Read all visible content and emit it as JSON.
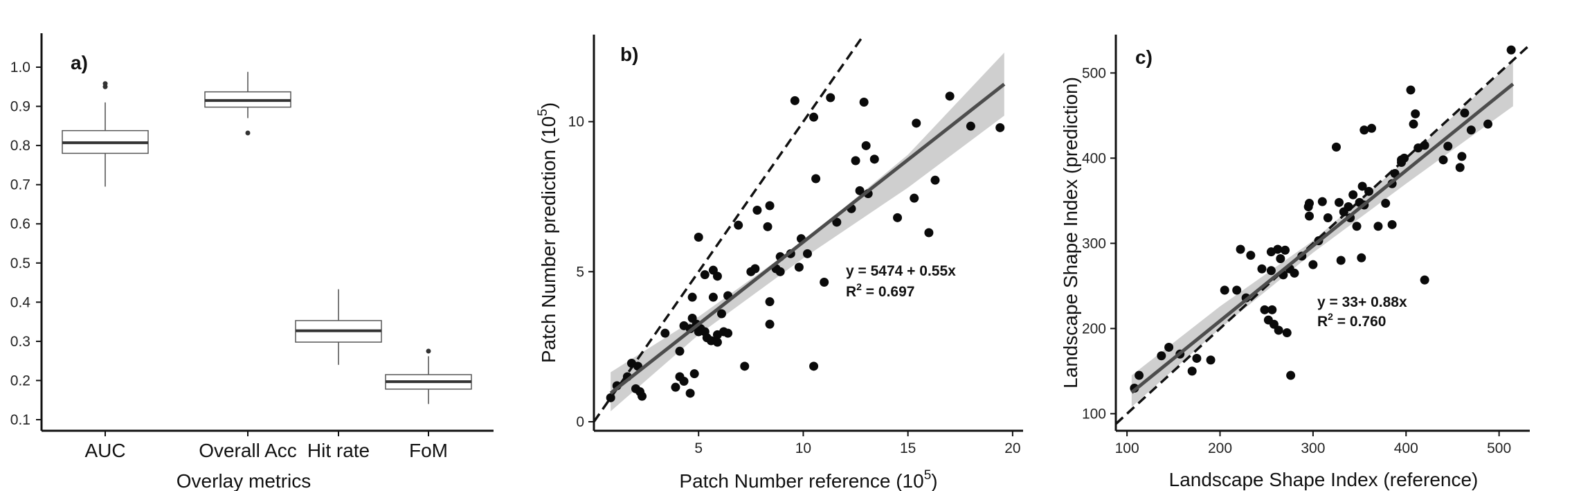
{
  "chart_data": [
    {
      "id": "a",
      "type": "box",
      "panel_label": "a)",
      "xlabel": "Overlay metrics",
      "ylabel": "",
      "ylim": [
        0.1,
        1.05
      ],
      "yticks": [
        "0.1",
        "0.2",
        "0.3",
        "0.4",
        "0.5",
        "0.6",
        "0.7",
        "0.8",
        "0.9",
        "1.0"
      ],
      "categories": [
        "AUC",
        "Overall Acc",
        "Hit rate",
        "FoM"
      ],
      "boxes": [
        {
          "min": 0.695,
          "q1": 0.78,
          "median": 0.807,
          "q3": 0.838,
          "max": 0.91,
          "outliers": [
            0.95,
            0.958
          ]
        },
        {
          "min": 0.87,
          "q1": 0.898,
          "median": 0.915,
          "q3": 0.937,
          "max": 0.988,
          "outliers": [
            0.832
          ]
        },
        {
          "min": 0.24,
          "q1": 0.298,
          "median": 0.327,
          "q3": 0.353,
          "max": 0.433,
          "outliers": []
        },
        {
          "min": 0.14,
          "q1": 0.178,
          "median": 0.197,
          "q3": 0.215,
          "max": 0.262,
          "outliers": [
            0.275
          ]
        }
      ],
      "colors": {
        "box_fill": "#ffffff",
        "box_line": "#555555",
        "median": "#333333"
      }
    },
    {
      "id": "b",
      "type": "scatter",
      "panel_label": "b)",
      "xlabel_prefix": "Patch Number reference (10",
      "xlabel_sup": "5",
      "xlabel_suffix": ")",
      "ylabel_prefix": "Patch Number prediction (10",
      "ylabel_sup": "5",
      "ylabel_suffix": ")",
      "xlim": [
        0,
        20.5
      ],
      "ylim": [
        -0.3,
        12.9
      ],
      "xticks": [
        5,
        10,
        15,
        20
      ],
      "yticks": [
        0,
        5,
        10
      ],
      "equation_line1": "y = 5474 + 0.55x",
      "equation_line2_prefix": "R",
      "equation_line2_sup": "2",
      "equation_line2_suffix": " = 0.697",
      "fit": {
        "x0": 0.8,
        "x1": 19.6,
        "y0": 0.95,
        "y1": 11.25
      },
      "ci_band": {
        "x": [
          0.8,
          5,
          10,
          15,
          19.6
        ],
        "lower": [
          0.35,
          2.9,
          5.45,
          7.8,
          10.2
        ],
        "upper": [
          1.65,
          3.5,
          6.0,
          8.9,
          12.3
        ]
      },
      "identity_line": {
        "x0": 0,
        "x1": 12.9
      },
      "points": [
        [
          0.8,
          0.8
        ],
        [
          1.1,
          1.2
        ],
        [
          1.6,
          1.5
        ],
        [
          1.8,
          1.95
        ],
        [
          2.1,
          1.85
        ],
        [
          2.0,
          1.1
        ],
        [
          2.2,
          1.0
        ],
        [
          2.3,
          0.85
        ],
        [
          3.4,
          2.95
        ],
        [
          3.9,
          1.15
        ],
        [
          4.1,
          1.5
        ],
        [
          4.3,
          1.35
        ],
        [
          4.1,
          2.35
        ],
        [
          4.3,
          3.2
        ],
        [
          4.6,
          3.1
        ],
        [
          4.6,
          0.95
        ],
        [
          4.8,
          1.6
        ],
        [
          4.7,
          3.45
        ],
        [
          4.9,
          3.25
        ],
        [
          5.0,
          3.0
        ],
        [
          5.1,
          3.1
        ],
        [
          5.3,
          3.0
        ],
        [
          5.4,
          2.8
        ],
        [
          5.6,
          2.7
        ],
        [
          5.9,
          2.9
        ],
        [
          5.9,
          2.65
        ],
        [
          6.2,
          3.0
        ],
        [
          6.4,
          2.95
        ],
        [
          4.7,
          4.15
        ],
        [
          5.7,
          4.15
        ],
        [
          5.7,
          5.05
        ],
        [
          5.3,
          4.9
        ],
        [
          5.9,
          4.85
        ],
        [
          6.4,
          4.2
        ],
        [
          6.1,
          3.6
        ],
        [
          5.0,
          6.15
        ],
        [
          7.2,
          1.85
        ],
        [
          6.9,
          6.55
        ],
        [
          7.5,
          5.0
        ],
        [
          7.7,
          5.1
        ],
        [
          7.8,
          7.05
        ],
        [
          8.3,
          6.5
        ],
        [
          8.4,
          7.2
        ],
        [
          8.4,
          4.0
        ],
        [
          8.4,
          3.25
        ],
        [
          8.7,
          5.1
        ],
        [
          8.9,
          5.0
        ],
        [
          8.9,
          5.5
        ],
        [
          9.4,
          5.6
        ],
        [
          9.8,
          5.15
        ],
        [
          9.9,
          6.1
        ],
        [
          10.2,
          5.6
        ],
        [
          9.6,
          10.7
        ],
        [
          10.5,
          10.15
        ],
        [
          10.6,
          8.1
        ],
        [
          11.0,
          4.65
        ],
        [
          11.3,
          10.8
        ],
        [
          11.6,
          6.65
        ],
        [
          12.3,
          7.1
        ],
        [
          12.5,
          8.7
        ],
        [
          12.7,
          7.7
        ],
        [
          12.9,
          10.65
        ],
        [
          13.0,
          9.2
        ],
        [
          13.1,
          7.6
        ],
        [
          13.4,
          8.75
        ],
        [
          14.5,
          6.8
        ],
        [
          15.3,
          7.45
        ],
        [
          15.4,
          9.95
        ],
        [
          16.0,
          6.3
        ],
        [
          16.3,
          8.05
        ],
        [
          17.0,
          10.85
        ],
        [
          18.0,
          9.85
        ],
        [
          19.4,
          9.8
        ],
        [
          10.5,
          1.85
        ]
      ]
    },
    {
      "id": "c",
      "type": "scatter",
      "panel_label": "c)",
      "xlabel": "Landscape Shape Index (reference)",
      "ylabel": "Landscape Shape Index (prediction)",
      "xlim": [
        88,
        533
      ],
      "ylim": [
        80,
        545
      ],
      "xticks": [
        100,
        200,
        300,
        400,
        500
      ],
      "yticks": [
        100,
        200,
        300,
        400,
        500
      ],
      "equation_line1": "y = 33+ 0.88x",
      "equation_line2_prefix": "R",
      "equation_line2_sup": "2",
      "equation_line2_suffix": " = 0.760",
      "fit": {
        "x0": 105,
        "x1": 515,
        "y0": 125,
        "y1": 487
      },
      "ci_band": {
        "x": [
          105,
          200,
          300,
          400,
          515
        ],
        "lower": [
          108,
          200,
          289,
          370,
          461
        ],
        "upper": [
          145,
          226,
          303,
          398,
          514
        ]
      },
      "identity_line": {
        "x0": 88,
        "x1": 533
      },
      "points": [
        [
          108,
          130
        ],
        [
          113,
          145
        ],
        [
          137,
          168
        ],
        [
          145,
          178
        ],
        [
          157,
          170
        ],
        [
          170,
          150
        ],
        [
          175,
          165
        ],
        [
          190,
          163
        ],
        [
          205,
          245
        ],
        [
          218,
          245
        ],
        [
          222,
          293
        ],
        [
          228,
          236
        ],
        [
          233,
          286
        ],
        [
          245,
          270
        ],
        [
          248,
          222
        ],
        [
          252,
          210
        ],
        [
          255,
          268
        ],
        [
          256,
          222
        ],
        [
          258,
          205
        ],
        [
          255,
          290
        ],
        [
          262,
          293
        ],
        [
          263,
          198
        ],
        [
          265,
          282
        ],
        [
          268,
          263
        ],
        [
          270,
          292
        ],
        [
          272,
          195
        ],
        [
          275,
          270
        ],
        [
          276,
          145
        ],
        [
          280,
          265
        ],
        [
          288,
          285
        ],
        [
          295,
          343
        ],
        [
          296,
          332
        ],
        [
          296,
          347
        ],
        [
          300,
          275
        ],
        [
          306,
          303
        ],
        [
          310,
          349
        ],
        [
          316,
          330
        ],
        [
          325,
          413
        ],
        [
          328,
          348
        ],
        [
          330,
          280
        ],
        [
          333,
          337
        ],
        [
          338,
          343
        ],
        [
          343,
          357
        ],
        [
          347,
          320
        ],
        [
          350,
          348
        ],
        [
          352,
          283
        ],
        [
          353,
          367
        ],
        [
          355,
          433
        ],
        [
          360,
          361
        ],
        [
          363,
          435
        ],
        [
          370,
          320
        ],
        [
          378,
          347
        ],
        [
          385,
          322
        ],
        [
          388,
          382
        ],
        [
          395,
          398
        ],
        [
          398,
          400
        ],
        [
          405,
          480
        ],
        [
          408,
          440
        ],
        [
          410,
          452
        ],
        [
          413,
          412
        ],
        [
          420,
          257
        ],
        [
          420,
          415
        ],
        [
          440,
          398
        ],
        [
          445,
          414
        ],
        [
          458,
          389
        ],
        [
          460,
          402
        ],
        [
          463,
          453
        ],
        [
          470,
          433
        ],
        [
          488,
          440
        ],
        [
          513,
          527
        ],
        [
          385,
          370
        ],
        [
          395,
          395
        ],
        [
          355,
          345
        ],
        [
          340,
          330
        ]
      ]
    }
  ],
  "colors": {
    "point": "#0a0a0a",
    "fit_line": "#4d4d4d",
    "ci_band": "#cfcfcf",
    "identity_line": "#111111",
    "axis": "#111111"
  }
}
